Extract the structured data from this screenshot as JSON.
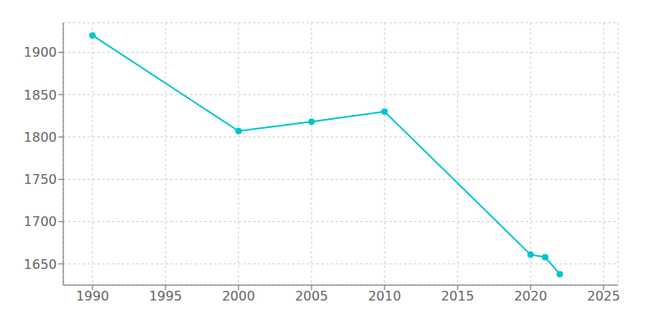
{
  "chart_data": {
    "type": "line",
    "x": [
      1990,
      2000,
      2005,
      2010,
      2020,
      2021,
      2022
    ],
    "values": [
      1920,
      1807,
      1818,
      1830,
      1661,
      1658,
      1638
    ],
    "color": "#00C5CD",
    "marker": "circle",
    "grid": true,
    "xlim": [
      1988,
      2026
    ],
    "ylim": [
      1625,
      1935
    ],
    "xticks": [
      1990,
      1995,
      2000,
      2005,
      2010,
      2015,
      2020,
      2025
    ],
    "yticks": [
      1650,
      1700,
      1750,
      1800,
      1850,
      1900
    ]
  }
}
